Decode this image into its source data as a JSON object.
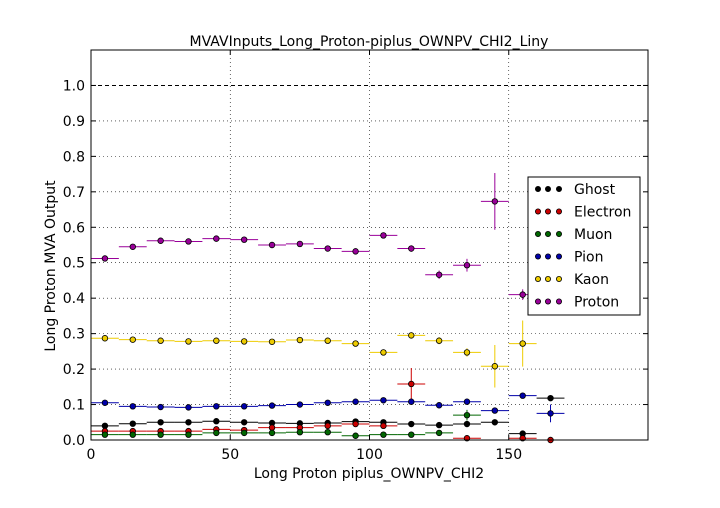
{
  "chart_data": {
    "type": "scatter",
    "title": "MVAVInputs_Long_Proton-piplus_OWNPV_CHI2_Liny",
    "xlabel": "Long Proton piplus_OWNPV_CHI2",
    "ylabel": "Long Proton MVA Output",
    "xlim": [
      0,
      200
    ],
    "ylim": [
      0,
      1.1
    ],
    "x_ticks": [
      "0",
      "50",
      "100",
      "150"
    ],
    "y_ticks": [
      "0.0",
      "0.1",
      "0.2",
      "0.3",
      "0.4",
      "0.5",
      "0.6",
      "0.7",
      "0.8",
      "0.9",
      "1.0"
    ],
    "grid": true,
    "reference_line": 1.0,
    "legend_position": "right",
    "x_bin_half_width": 5,
    "series": [
      {
        "name": "Ghost",
        "color": "#000000",
        "points": [
          {
            "x": 5,
            "y": 0.04,
            "err": 0.004
          },
          {
            "x": 15,
            "y": 0.046,
            "err": 0.004
          },
          {
            "x": 25,
            "y": 0.05,
            "err": 0.004
          },
          {
            "x": 35,
            "y": 0.05,
            "err": 0.004
          },
          {
            "x": 45,
            "y": 0.053,
            "err": 0.004
          },
          {
            "x": 55,
            "y": 0.05,
            "err": 0.004
          },
          {
            "x": 65,
            "y": 0.048,
            "err": 0.004
          },
          {
            "x": 75,
            "y": 0.047,
            "err": 0.004
          },
          {
            "x": 85,
            "y": 0.048,
            "err": 0.004
          },
          {
            "x": 95,
            "y": 0.052,
            "err": 0.005
          },
          {
            "x": 105,
            "y": 0.05,
            "err": 0.005
          },
          {
            "x": 115,
            "y": 0.045,
            "err": 0.005
          },
          {
            "x": 125,
            "y": 0.042,
            "err": 0.005
          },
          {
            "x": 135,
            "y": 0.045,
            "err": 0.006
          },
          {
            "x": 145,
            "y": 0.05,
            "err": 0.008
          },
          {
            "x": 155,
            "y": 0.018,
            "err": 0.006
          },
          {
            "x": 165,
            "y": 0.118,
            "err": 0.006
          }
        ]
      },
      {
        "name": "Electron",
        "color": "#cc0000",
        "points": [
          {
            "x": 5,
            "y": 0.025,
            "err": 0.004
          },
          {
            "x": 15,
            "y": 0.025,
            "err": 0.004
          },
          {
            "x": 25,
            "y": 0.025,
            "err": 0.004
          },
          {
            "x": 35,
            "y": 0.025,
            "err": 0.004
          },
          {
            "x": 45,
            "y": 0.03,
            "err": 0.004
          },
          {
            "x": 55,
            "y": 0.028,
            "err": 0.004
          },
          {
            "x": 65,
            "y": 0.035,
            "err": 0.005
          },
          {
            "x": 75,
            "y": 0.035,
            "err": 0.005
          },
          {
            "x": 85,
            "y": 0.04,
            "err": 0.005
          },
          {
            "x": 95,
            "y": 0.045,
            "err": 0.006
          },
          {
            "x": 105,
            "y": 0.04,
            "err": 0.006
          },
          {
            "x": 115,
            "y": 0.158,
            "err": 0.045
          },
          {
            "x": 135,
            "y": 0.005,
            "err": 0.004
          },
          {
            "x": 155,
            "y": 0.005,
            "err": 0.004
          },
          {
            "x": 165,
            "y": 0.0,
            "err": 0.003
          }
        ]
      },
      {
        "name": "Muon",
        "color": "#006600",
        "points": [
          {
            "x": 5,
            "y": 0.015,
            "err": 0.003
          },
          {
            "x": 15,
            "y": 0.015,
            "err": 0.003
          },
          {
            "x": 25,
            "y": 0.015,
            "err": 0.003
          },
          {
            "x": 35,
            "y": 0.015,
            "err": 0.003
          },
          {
            "x": 45,
            "y": 0.02,
            "err": 0.003
          },
          {
            "x": 55,
            "y": 0.02,
            "err": 0.003
          },
          {
            "x": 65,
            "y": 0.02,
            "err": 0.003
          },
          {
            "x": 75,
            "y": 0.022,
            "err": 0.003
          },
          {
            "x": 85,
            "y": 0.022,
            "err": 0.003
          },
          {
            "x": 95,
            "y": 0.012,
            "err": 0.004
          },
          {
            "x": 105,
            "y": 0.015,
            "err": 0.004
          },
          {
            "x": 115,
            "y": 0.015,
            "err": 0.004
          },
          {
            "x": 125,
            "y": 0.02,
            "err": 0.004
          },
          {
            "x": 135,
            "y": 0.07,
            "err": 0.015
          }
        ]
      },
      {
        "name": "Pion",
        "color": "#0000aa",
        "points": [
          {
            "x": 5,
            "y": 0.105,
            "err": 0.004
          },
          {
            "x": 15,
            "y": 0.095,
            "err": 0.004
          },
          {
            "x": 25,
            "y": 0.093,
            "err": 0.004
          },
          {
            "x": 35,
            "y": 0.092,
            "err": 0.004
          },
          {
            "x": 45,
            "y": 0.095,
            "err": 0.004
          },
          {
            "x": 55,
            "y": 0.095,
            "err": 0.004
          },
          {
            "x": 65,
            "y": 0.097,
            "err": 0.004
          },
          {
            "x": 75,
            "y": 0.1,
            "err": 0.004
          },
          {
            "x": 85,
            "y": 0.105,
            "err": 0.005
          },
          {
            "x": 95,
            "y": 0.108,
            "err": 0.005
          },
          {
            "x": 105,
            "y": 0.112,
            "err": 0.005
          },
          {
            "x": 115,
            "y": 0.108,
            "err": 0.006
          },
          {
            "x": 125,
            "y": 0.098,
            "err": 0.006
          },
          {
            "x": 135,
            "y": 0.108,
            "err": 0.007
          },
          {
            "x": 145,
            "y": 0.083,
            "err": 0.007
          },
          {
            "x": 155,
            "y": 0.125,
            "err": 0.006
          },
          {
            "x": 165,
            "y": 0.075,
            "err": 0.025
          }
        ]
      },
      {
        "name": "Kaon",
        "color": "#eecc00",
        "points": [
          {
            "x": 5,
            "y": 0.287,
            "err": 0.006
          },
          {
            "x": 15,
            "y": 0.283,
            "err": 0.006
          },
          {
            "x": 25,
            "y": 0.28,
            "err": 0.006
          },
          {
            "x": 35,
            "y": 0.278,
            "err": 0.006
          },
          {
            "x": 45,
            "y": 0.28,
            "err": 0.006
          },
          {
            "x": 55,
            "y": 0.278,
            "err": 0.006
          },
          {
            "x": 65,
            "y": 0.277,
            "err": 0.006
          },
          {
            "x": 75,
            "y": 0.282,
            "err": 0.006
          },
          {
            "x": 85,
            "y": 0.28,
            "err": 0.007
          },
          {
            "x": 95,
            "y": 0.272,
            "err": 0.007
          },
          {
            "x": 105,
            "y": 0.247,
            "err": 0.008
          },
          {
            "x": 115,
            "y": 0.295,
            "err": 0.009
          },
          {
            "x": 125,
            "y": 0.28,
            "err": 0.01
          },
          {
            "x": 135,
            "y": 0.247,
            "err": 0.012
          },
          {
            "x": 145,
            "y": 0.208,
            "err": 0.06
          },
          {
            "x": 155,
            "y": 0.272,
            "err": 0.065
          }
        ]
      },
      {
        "name": "Proton",
        "color": "#990099",
        "points": [
          {
            "x": 5,
            "y": 0.512,
            "err": 0.005
          },
          {
            "x": 15,
            "y": 0.545,
            "err": 0.005
          },
          {
            "x": 25,
            "y": 0.562,
            "err": 0.005
          },
          {
            "x": 35,
            "y": 0.56,
            "err": 0.005
          },
          {
            "x": 45,
            "y": 0.568,
            "err": 0.005
          },
          {
            "x": 55,
            "y": 0.565,
            "err": 0.006
          },
          {
            "x": 65,
            "y": 0.55,
            "err": 0.006
          },
          {
            "x": 75,
            "y": 0.553,
            "err": 0.006
          },
          {
            "x": 85,
            "y": 0.54,
            "err": 0.007
          },
          {
            "x": 95,
            "y": 0.532,
            "err": 0.007
          },
          {
            "x": 105,
            "y": 0.577,
            "err": 0.008
          },
          {
            "x": 115,
            "y": 0.54,
            "err": 0.009
          },
          {
            "x": 125,
            "y": 0.466,
            "err": 0.012
          },
          {
            "x": 135,
            "y": 0.493,
            "err": 0.018
          },
          {
            "x": 145,
            "y": 0.673,
            "err": 0.08
          },
          {
            "x": 155,
            "y": 0.41,
            "err": 0.015
          }
        ]
      }
    ]
  }
}
